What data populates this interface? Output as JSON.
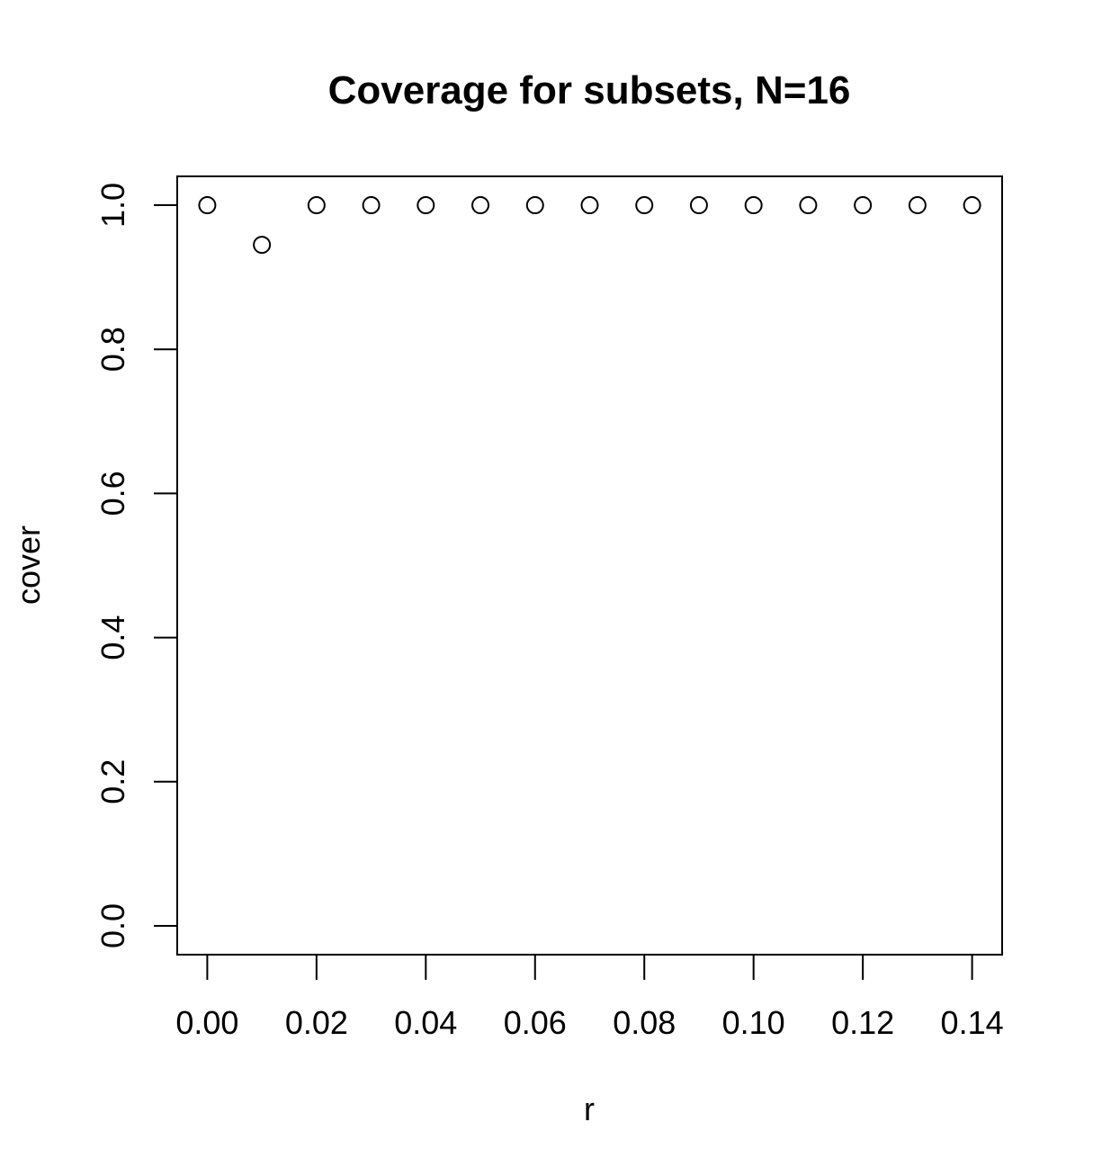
{
  "chart_data": {
    "type": "scatter",
    "title": "Coverage for subsets, N=16",
    "xlabel": "r",
    "ylabel": "cover",
    "xlim": [
      -0.0055,
      0.1455
    ],
    "ylim": [
      -0.04,
      1.04
    ],
    "x_ticks": [
      0.0,
      0.02,
      0.04,
      0.06,
      0.08,
      0.1,
      0.12,
      0.14
    ],
    "x_tick_labels": [
      "0.00",
      "0.02",
      "0.04",
      "0.06",
      "0.08",
      "0.10",
      "0.12",
      "0.14"
    ],
    "y_ticks": [
      0.0,
      0.2,
      0.4,
      0.6,
      0.8,
      1.0
    ],
    "y_tick_labels": [
      "0.0",
      "0.2",
      "0.4",
      "0.6",
      "0.8",
      "1.0"
    ],
    "grid": false,
    "marker": "open-circle",
    "colors": {
      "points": "#000000",
      "axes": "#000000",
      "background": "#ffffff"
    },
    "x": [
      0.0,
      0.01,
      0.02,
      0.03,
      0.04,
      0.05,
      0.06,
      0.07,
      0.08,
      0.09,
      0.1,
      0.11,
      0.12,
      0.13,
      0.14
    ],
    "y": [
      1.0,
      0.945,
      1.0,
      1.0,
      1.0,
      1.0,
      1.0,
      1.0,
      1.0,
      1.0,
      1.0,
      1.0,
      1.0,
      1.0,
      1.0
    ]
  }
}
